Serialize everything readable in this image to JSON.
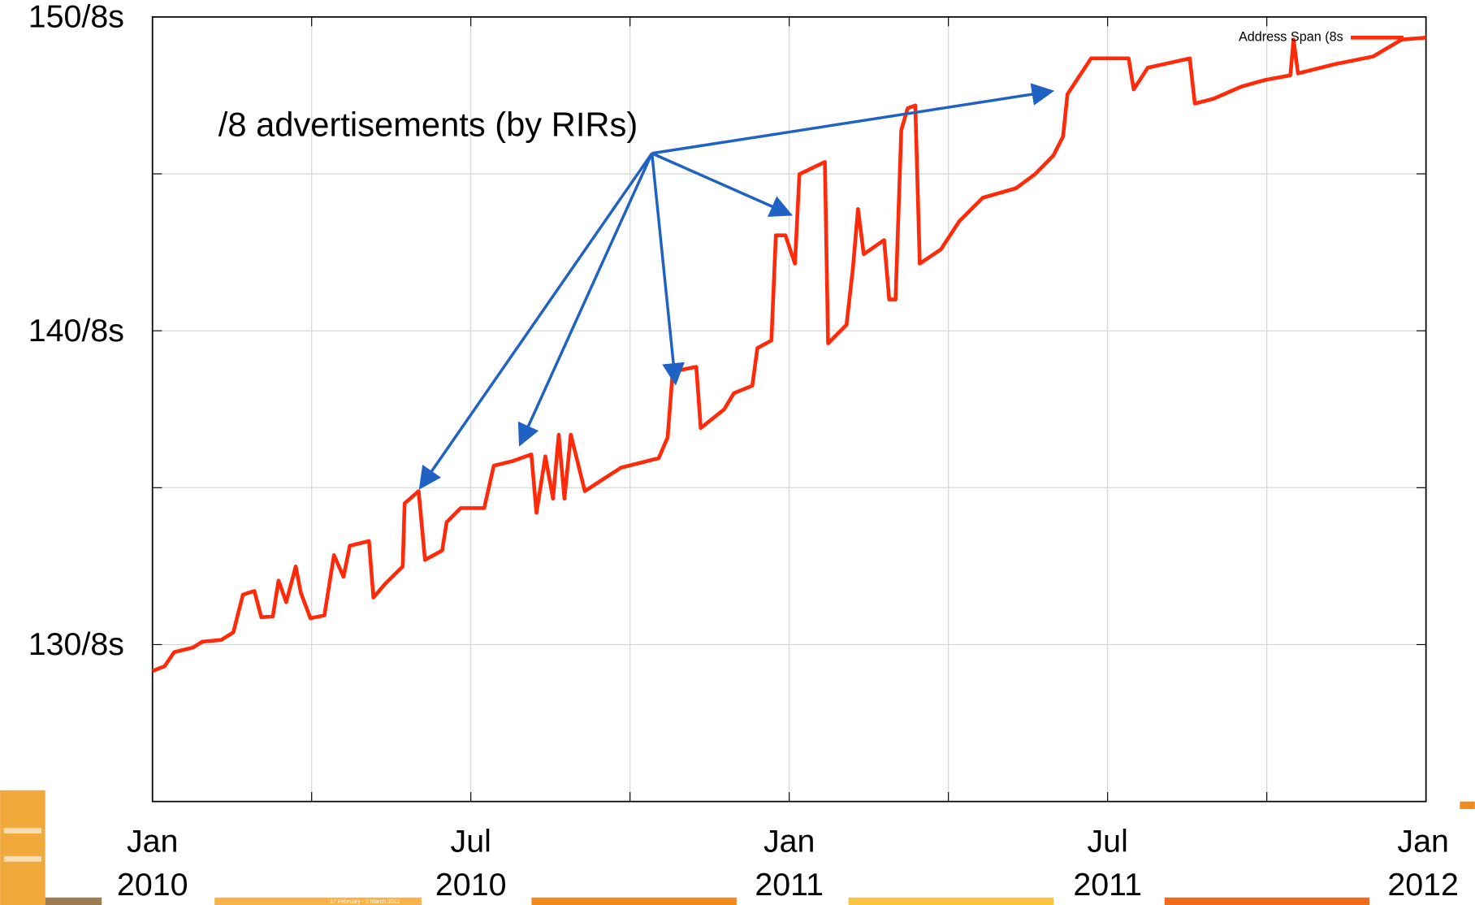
{
  "chart_data": {
    "type": "line",
    "annotation": "/8 advertisements (by RIRs)",
    "x": [
      2010.0,
      2010.019,
      2010.034,
      2010.064,
      2010.078,
      2010.108,
      2010.127,
      2010.142,
      2010.16,
      2010.171,
      2010.189,
      2010.198,
      2010.21,
      2010.225,
      2010.233,
      2010.248,
      2010.27,
      2010.285,
      2010.3,
      2010.31,
      2010.34,
      2010.347,
      2010.366,
      2010.393,
      2010.396,
      2010.418,
      2010.428,
      2010.455,
      2010.462,
      2010.484,
      2010.521,
      2010.536,
      2010.566,
      2010.595,
      2010.603,
      2010.617,
      2010.629,
      2010.638,
      2010.647,
      2010.657,
      2010.679,
      2010.706,
      2010.736,
      2010.795,
      2010.809,
      2010.817,
      2010.854,
      2010.861,
      2010.898,
      2010.913,
      2010.942,
      2010.95,
      2010.972,
      2010.979,
      2010.994,
      2011.009,
      2011.016,
      2011.056,
      2011.061,
      2011.09,
      2011.1,
      2011.108,
      2011.117,
      2011.149,
      2011.157,
      2011.167,
      2011.176,
      2011.186,
      2011.198,
      2011.205,
      2011.238,
      2011.267,
      2011.304,
      2011.356,
      2011.386,
      2011.415,
      2011.43,
      2011.437,
      2011.474,
      2011.533,
      2011.541,
      2011.563,
      2011.629,
      2011.637,
      2011.666,
      2011.71,
      2011.747,
      2011.787,
      2011.792,
      2011.799,
      2011.858,
      2011.917,
      2011.962,
      2012.0
    ],
    "series": [
      {
        "name": "Address Span (8s",
        "color": "#ff2a0a",
        "values": [
          129.16,
          129.31,
          129.76,
          129.91,
          130.09,
          130.15,
          130.39,
          131.59,
          131.71,
          130.87,
          130.9,
          132.04,
          131.35,
          132.49,
          131.65,
          130.84,
          130.93,
          132.85,
          132.16,
          133.15,
          133.3,
          131.5,
          131.95,
          132.49,
          134.5,
          134.89,
          132.7,
          133.0,
          133.9,
          134.35,
          134.35,
          135.7,
          135.85,
          136.06,
          134.2,
          136.0,
          134.65,
          136.69,
          134.65,
          136.69,
          134.89,
          135.25,
          135.64,
          135.94,
          136.6,
          138.7,
          138.85,
          136.9,
          137.5,
          138.01,
          138.25,
          139.45,
          139.69,
          143.04,
          143.04,
          142.14,
          144.99,
          145.38,
          139.6,
          140.19,
          141.99,
          143.88,
          142.44,
          142.89,
          141.0,
          141.0,
          146.4,
          147.09,
          147.18,
          142.14,
          142.59,
          143.49,
          144.24,
          144.54,
          144.99,
          145.59,
          146.19,
          147.54,
          148.68,
          148.68,
          147.69,
          148.38,
          148.68,
          147.24,
          147.39,
          147.78,
          147.99,
          148.14,
          149.28,
          148.2,
          148.5,
          148.74,
          149.28,
          149.34
        ]
      }
    ],
    "xlim": [
      2010,
      2012
    ],
    "xticks": [
      {
        "value": 2010,
        "label": "Jan 2010"
      },
      {
        "value": 2010.25,
        "label": null
      },
      {
        "value": 2010.5,
        "label": "Jul 2010"
      },
      {
        "value": 2010.75,
        "label": null
      },
      {
        "value": 2011,
        "label": "Jan 2011"
      },
      {
        "value": 2011.25,
        "label": null
      },
      {
        "value": 2011.5,
        "label": "Jul 2011"
      },
      {
        "value": 2011.75,
        "label": null
      },
      {
        "value": 2012,
        "label": "Jan 2012"
      }
    ],
    "ylim": [
      125,
      150
    ],
    "yticks": [
      {
        "value": 125,
        "label": null
      },
      {
        "value": 130,
        "label": "130/8s"
      },
      {
        "value": 135,
        "label": null
      },
      {
        "value": 140,
        "label": "140/8s"
      },
      {
        "value": 145,
        "label": null
      },
      {
        "value": 150,
        "label": "150/8s"
      }
    ],
    "grid": true,
    "legend": "top-right",
    "annotation_color": "#1f62c4"
  },
  "footer": {
    "dates": "27 February - 2 March 2012"
  }
}
